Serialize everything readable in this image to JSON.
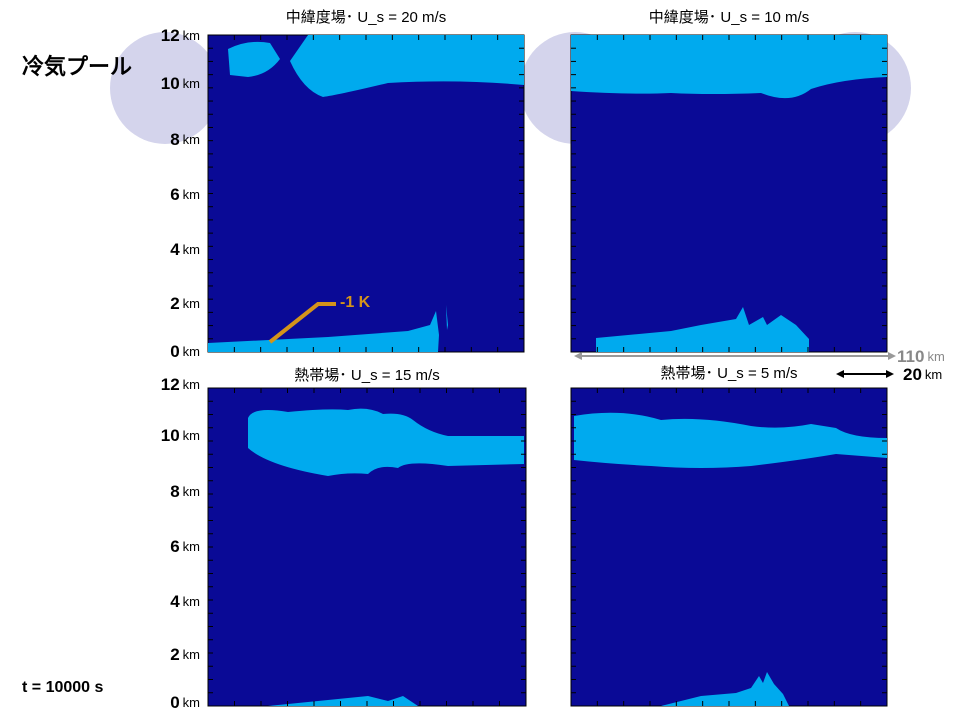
{
  "label": "冷気プール",
  "time": "t = 10000 s",
  "annotation": "-1 K",
  "yticks": [
    {
      "num": "12",
      "unit": "km"
    },
    {
      "num": "10",
      "unit": "km"
    },
    {
      "num": "8",
      "unit": "km"
    },
    {
      "num": "6",
      "unit": "km"
    },
    {
      "num": "4",
      "unit": "km"
    },
    {
      "num": "2",
      "unit": "km"
    },
    {
      "num": "0",
      "unit": "km"
    }
  ],
  "panels": [
    {
      "title": "中緯度場･ U_s = 20 m/s"
    },
    {
      "title": "中緯度場･ U_s = 10 m/s"
    },
    {
      "title": "熱帯場･ U_s = 15 m/s"
    },
    {
      "title": "熱帯場･ U_s = 5 m/s"
    }
  ],
  "scale": [
    {
      "num": "110",
      "unit": "km"
    },
    {
      "num": "20",
      "unit": "km"
    }
  ]
}
